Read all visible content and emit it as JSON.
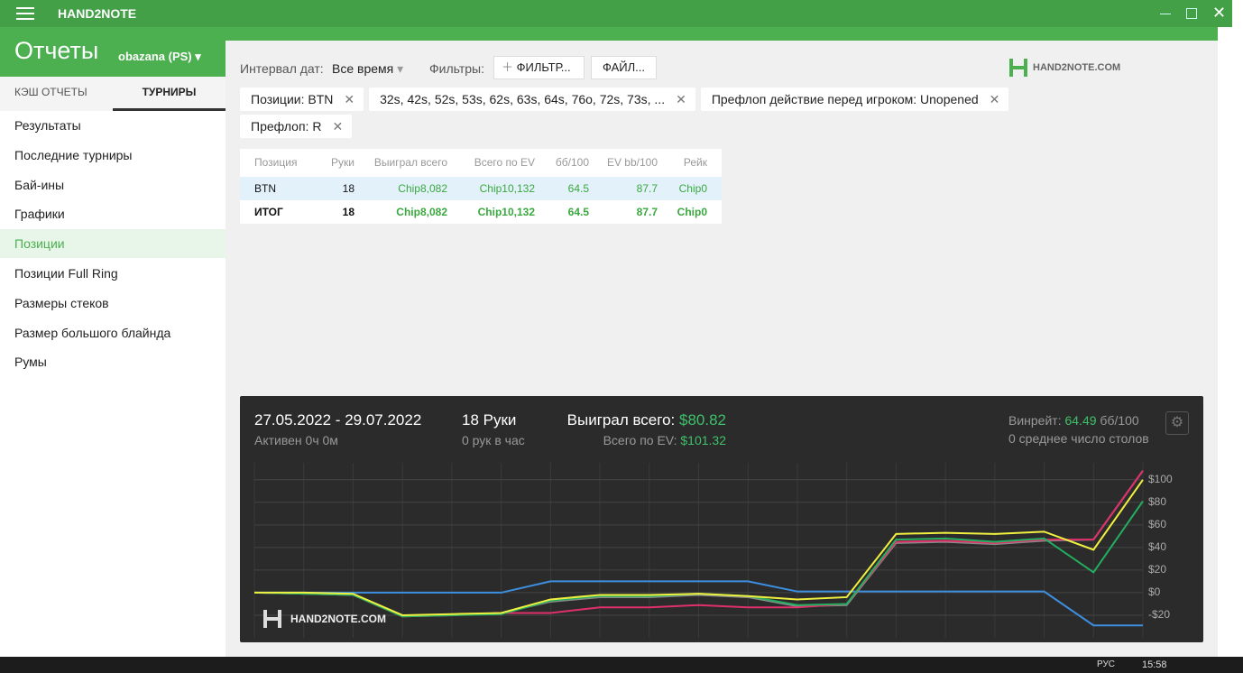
{
  "titlebar": {
    "app": "HAND2NOTE"
  },
  "header": {
    "title": "Отчеты",
    "player": "obazana (PS)"
  },
  "tabs": {
    "items": [
      "КЭШ ОТЧЕТЫ",
      "ТУРНИРЫ"
    ],
    "active": 1
  },
  "menu": {
    "items": [
      "Результаты",
      "Последние турниры",
      "Бай-ины",
      "Графики",
      "Позиции",
      "Позиции Full Ring",
      "Размеры стеков",
      "Размер большого блайнда",
      "Румы"
    ],
    "active": 4
  },
  "toolbar": {
    "interval_label": "Интервал дат:",
    "interval_value": "Все время",
    "filters_label": "Фильтры:",
    "filter_button": "ФИЛЬТР...",
    "file_button": "ФАЙЛ..."
  },
  "brand": "HAND2NOTE.COM",
  "filter_tags": [
    "Позиции: BTN",
    "32s, 42s, 52s, 53s, 62s, 63s, 64s, 76o, 72s, 73s, ...",
    "Префлоп действие перед игроком: Unopened",
    "Префлоп: R"
  ],
  "table": {
    "columns": [
      "Позиция",
      "Руки",
      "Выиграл всего",
      "Всего по EV",
      "бб/100",
      "EV bb/100",
      "Рейк"
    ],
    "rows": [
      [
        "BTN",
        "18",
        "Chip8,082",
        "Chip10,132",
        "64.5",
        "87.7",
        "Chip0"
      ],
      [
        "ИТОГ",
        "18",
        "Chip8,082",
        "Chip10,132",
        "64.5",
        "87.7",
        "Chip0"
      ]
    ],
    "selected_row": 0,
    "total_row": 1
  },
  "summary": {
    "dates": "27.05.2022 - 29.07.2022",
    "active": "Активен 0ч 0м",
    "hands": "18 Руки",
    "hands_per_hour": "0 рук в час",
    "won_label": "Выиграл всего:",
    "won_value": "$80.82",
    "ev_label": "Всего по EV:",
    "ev_value": "$101.32",
    "winrate_label": "Винрейт:",
    "winrate_value": "64.49",
    "winrate_unit": "бб/100",
    "tables": "0 среднее число столов"
  },
  "chart_data": {
    "type": "line",
    "ylim": [
      -40,
      115
    ],
    "yticks": [
      {
        "value": 100,
        "label": "$100"
      },
      {
        "value": 80,
        "label": "$80"
      },
      {
        "value": 60,
        "label": "$60"
      },
      {
        "value": 40,
        "label": "$40"
      },
      {
        "value": 20,
        "label": "$20"
      },
      {
        "value": 0,
        "label": "$0"
      },
      {
        "value": -20,
        "label": "-$20"
      }
    ],
    "grid": true,
    "series": [
      {
        "color": "#3d8fe0",
        "values": [
          0,
          0,
          0,
          0,
          0,
          0,
          10,
          10,
          10,
          10,
          10,
          1,
          1,
          1,
          1,
          1,
          1,
          -29,
          -29
        ]
      },
      {
        "color": "#8a8a8a",
        "values": [
          0,
          -1,
          -2,
          -21,
          -20,
          -18,
          -8,
          -4,
          -4,
          -2,
          -4,
          -12,
          -11,
          44,
          45,
          43,
          46,
          47,
          108
        ]
      },
      {
        "color": "#e0306a",
        "values": [
          0,
          -1,
          -2,
          -21,
          -20,
          -18,
          -18,
          -13,
          -13,
          -11,
          -13,
          -13,
          -10,
          45,
          46,
          44,
          47,
          47,
          108
        ]
      },
      {
        "color": "#22b060",
        "values": [
          0,
          -1,
          -2,
          -21,
          -20,
          -19,
          -7,
          -3,
          -3,
          -1,
          -3,
          -11,
          -10,
          47,
          48,
          45,
          48,
          18,
          81
        ]
      },
      {
        "color": "#f0f040",
        "values": [
          0,
          0,
          -1,
          -20,
          -19,
          -18,
          -6,
          -2,
          -2,
          -1,
          -3,
          -6,
          -4,
          52,
          53,
          52,
          54,
          38,
          100
        ]
      }
    ]
  },
  "taskbar": {
    "lang": "РУС",
    "time": "15:58"
  }
}
